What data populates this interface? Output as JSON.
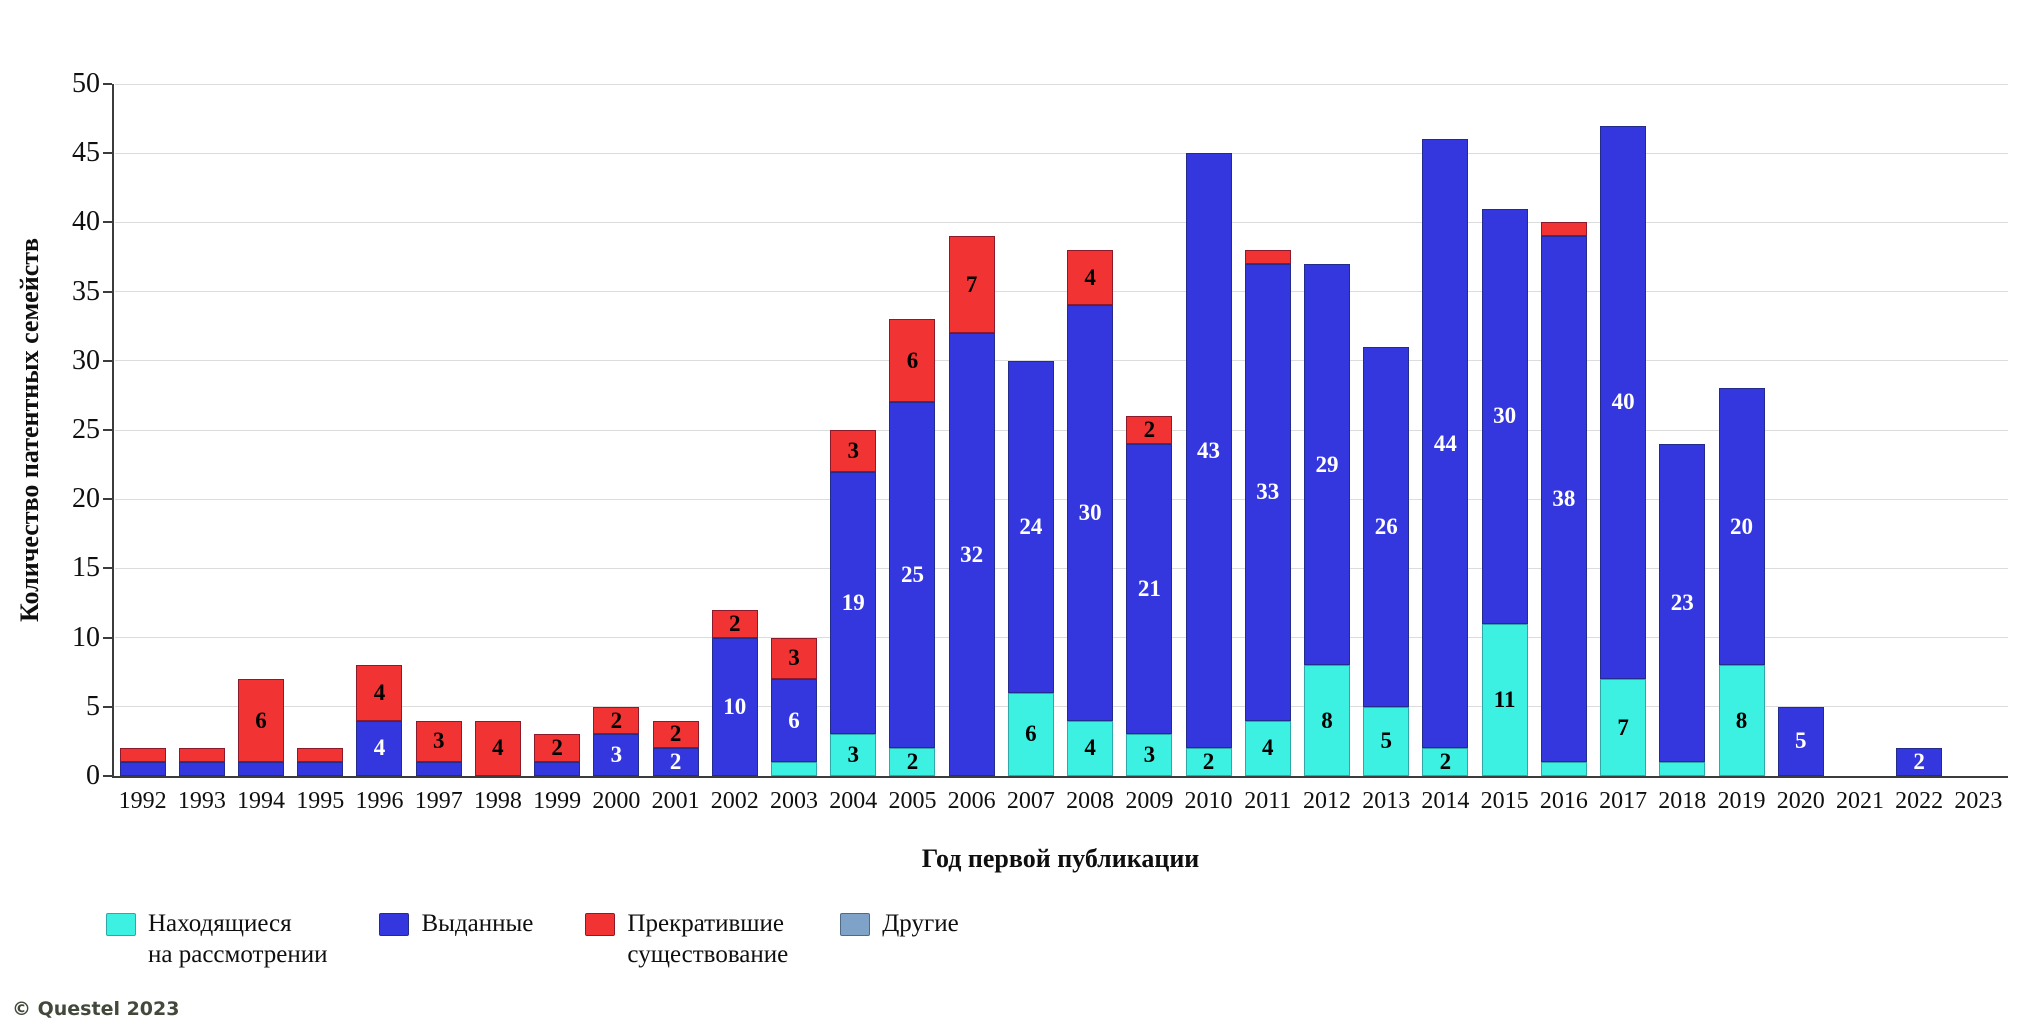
{
  "footer": {
    "copyright": "© Questel 2023"
  },
  "legend": {
    "items": [
      {
        "name": "pending",
        "lines": [
          "Находящиеся",
          "на рассмотрении"
        ],
        "fill": "#3DF1E2",
        "border": "#2FA8A8"
      },
      {
        "name": "granted",
        "lines": [
          "Выданные"
        ],
        "fill": "#3437DE",
        "border": "#232B8C"
      },
      {
        "name": "lapsed",
        "lines": [
          "Прекратившие",
          "существование"
        ],
        "fill": "#F23333",
        "border": "#8C1A2B"
      },
      {
        "name": "others",
        "lines": [
          "Другие"
        ],
        "fill": "#7FA3C8",
        "border": "#4F6B85"
      }
    ]
  },
  "chart_data": {
    "type": "bar",
    "stacked": true,
    "title": "",
    "xlabel": "Год первой публикации",
    "ylabel": "Количество патентных семейств",
    "ylim": [
      0,
      50
    ],
    "yticks": [
      0,
      5,
      10,
      15,
      20,
      25,
      30,
      35,
      40,
      45,
      50
    ],
    "grid": true,
    "legend_position": "bottom",
    "value_label_min": 2,
    "categories": [
      "1992",
      "1993",
      "1994",
      "1995",
      "1996",
      "1997",
      "1998",
      "1999",
      "2000",
      "2001",
      "2002",
      "2003",
      "2004",
      "2005",
      "2006",
      "2007",
      "2008",
      "2009",
      "2010",
      "2011",
      "2012",
      "2013",
      "2014",
      "2015",
      "2016",
      "2017",
      "2018",
      "2019",
      "2020",
      "2021",
      "2022",
      "2023"
    ],
    "series": [
      {
        "name": "Находящиеся на рассмотрении",
        "color": "#3DF1E2",
        "border": "#2FA8A8",
        "label_color": "#000000",
        "values": [
          0,
          0,
          0,
          0,
          0,
          0,
          0,
          0,
          0,
          0,
          0,
          1,
          3,
          2,
          0,
          6,
          4,
          3,
          2,
          4,
          8,
          5,
          2,
          11,
          1,
          7,
          1,
          8,
          0,
          0,
          0,
          0
        ]
      },
      {
        "name": "Выданные",
        "color": "#3437DE",
        "border": "#232B8C",
        "label_color": "#FFFFFF",
        "values": [
          1,
          1,
          1,
          1,
          4,
          1,
          0,
          1,
          3,
          2,
          10,
          6,
          19,
          25,
          32,
          24,
          30,
          21,
          43,
          33,
          29,
          26,
          44,
          30,
          38,
          40,
          23,
          20,
          5,
          0,
          2,
          0
        ]
      },
      {
        "name": "Прекратившие существование",
        "color": "#F23333",
        "border": "#8C1A2B",
        "label_color": "#000000",
        "values": [
          1,
          1,
          6,
          1,
          4,
          3,
          4,
          2,
          2,
          2,
          2,
          3,
          3,
          6,
          7,
          0,
          4,
          2,
          0,
          1,
          0,
          0,
          0,
          0,
          1,
          0,
          0,
          0,
          0,
          0,
          0,
          0
        ]
      },
      {
        "name": "Другие",
        "color": "#7FA3C8",
        "border": "#4F6B85",
        "label_color": "#000000",
        "values": [
          0,
          0,
          0,
          0,
          0,
          0,
          0,
          0,
          0,
          0,
          0,
          0,
          0,
          0,
          0,
          0,
          0,
          0,
          0,
          0,
          0,
          0,
          0,
          0,
          0,
          0,
          0,
          0,
          0,
          0,
          0,
          0
        ]
      }
    ]
  }
}
